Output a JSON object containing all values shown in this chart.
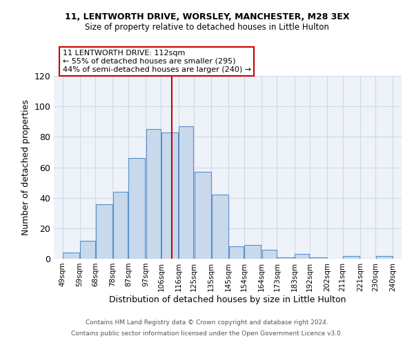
{
  "title1": "11, LENTWORTH DRIVE, WORSLEY, MANCHESTER, M28 3EX",
  "title2": "Size of property relative to detached houses in Little Hulton",
  "xlabel": "Distribution of detached houses by size in Little Hulton",
  "ylabel": "Number of detached properties",
  "annotation_line1": "11 LENTWORTH DRIVE: 112sqm",
  "annotation_line2": "← 55% of detached houses are smaller (295)",
  "annotation_line3": "44% of semi-detached houses are larger (240) →",
  "property_line_x": 112,
  "bar_left_edges": [
    49,
    59,
    68,
    78,
    87,
    97,
    106,
    116,
    125,
    135,
    145,
    154,
    164,
    173,
    183,
    192,
    202,
    211,
    221,
    230
  ],
  "bar_widths": [
    10,
    9,
    10,
    9,
    10,
    9,
    10,
    9,
    10,
    10,
    9,
    10,
    9,
    10,
    9,
    10,
    9,
    10,
    9,
    10
  ],
  "bar_heights": [
    4,
    12,
    36,
    44,
    66,
    85,
    83,
    87,
    57,
    42,
    8,
    9,
    6,
    1,
    3,
    1,
    0,
    2,
    0,
    2
  ],
  "bar_color": "#c9d9ec",
  "bar_edge_color": "#5b8fc9",
  "vline_color": "#cc0000",
  "tick_labels": [
    "49sqm",
    "59sqm",
    "68sqm",
    "78sqm",
    "87sqm",
    "97sqm",
    "106sqm",
    "116sqm",
    "125sqm",
    "135sqm",
    "145sqm",
    "154sqm",
    "164sqm",
    "173sqm",
    "183sqm",
    "192sqm",
    "202sqm",
    "211sqm",
    "221sqm",
    "230sqm",
    "240sqm"
  ],
  "tick_positions": [
    49,
    59,
    68,
    78,
    87,
    97,
    106,
    116,
    125,
    135,
    145,
    154,
    164,
    173,
    183,
    192,
    202,
    211,
    221,
    230,
    240
  ],
  "ylim": [
    0,
    120
  ],
  "xlim": [
    44,
    245
  ],
  "yticks": [
    0,
    20,
    40,
    60,
    80,
    100,
    120
  ],
  "grid_color": "#d0d8e8",
  "bg_color": "#eef2f9",
  "footer1": "Contains HM Land Registry data © Crown copyright and database right 2024.",
  "footer2": "Contains public sector information licensed under the Open Government Licence v3.0."
}
